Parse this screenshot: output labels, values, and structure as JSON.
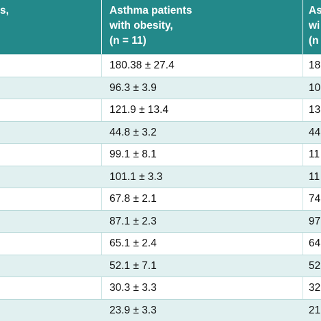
{
  "table": {
    "header": [
      {
        "lines": [
          "s,"
        ]
      },
      {
        "lines": [
          "Asthma patients",
          "with obesity,",
          "(n = 11)"
        ]
      },
      {
        "lines": [
          "As",
          "wi",
          "(n"
        ]
      }
    ],
    "rows": [
      [
        "180.38 ± 27.4",
        "18"
      ],
      [
        "96.3 ± 3.9",
        "10"
      ],
      [
        "121.9 ± 13.4",
        "13"
      ],
      [
        "44.8 ± 3.2",
        "44"
      ],
      [
        "99.1 ± 8.1",
        "11"
      ],
      [
        "101.1 ± 3.3",
        "11"
      ],
      [
        "67.8 ± 2.1",
        "74"
      ],
      [
        "87.1 ± 2.3",
        "97"
      ],
      [
        "65.1 ± 2.4",
        "64"
      ],
      [
        "52.1 ± 7.1",
        "52"
      ],
      [
        "30.3 ± 3.3",
        "32"
      ],
      [
        "23.9 ± 3.3",
        "21"
      ]
    ]
  }
}
